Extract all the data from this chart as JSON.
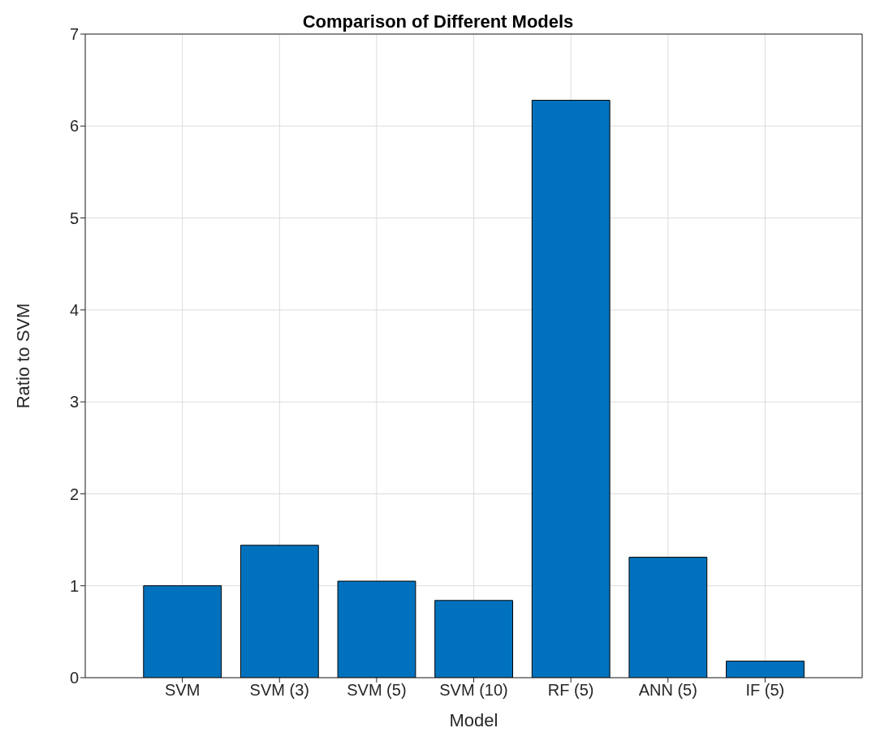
{
  "chart_data": {
    "type": "bar",
    "title": "Comparison of Different Models",
    "xlabel": "Model",
    "ylabel": "Ratio to SVM",
    "categories": [
      "SVM",
      "SVM (3)",
      "SVM (5)",
      "SVM (10)",
      "RF (5)",
      "ANN (5)",
      "IF (5)"
    ],
    "values": [
      1.0,
      1.44,
      1.05,
      0.84,
      6.28,
      1.31,
      0.18
    ],
    "color": "#0072bd",
    "ylim": [
      0,
      7
    ],
    "yticks": [
      0,
      1,
      2,
      3,
      4,
      5,
      6,
      7
    ],
    "grid": true
  }
}
